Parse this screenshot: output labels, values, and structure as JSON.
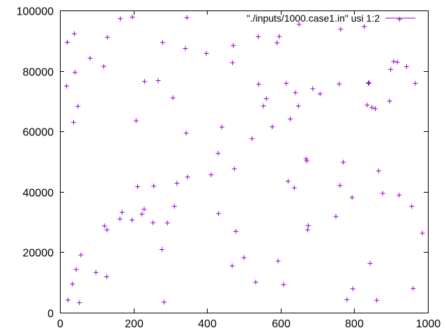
{
  "chart_data": {
    "type": "scatter",
    "title": "",
    "xlabel": "",
    "ylabel": "",
    "xlim": [
      0,
      1000
    ],
    "ylim": [
      0,
      100000
    ],
    "x_ticks": [
      0,
      200,
      400,
      600,
      800,
      1000
    ],
    "y_ticks": [
      0,
      20000,
      40000,
      60000,
      80000,
      100000
    ],
    "x_tick_labels": [
      "0",
      "200",
      "400",
      "600",
      "800",
      "1000"
    ],
    "y_tick_labels": [
      "0",
      "20000",
      "40000",
      "60000",
      "80000",
      "100000"
    ],
    "grid": false,
    "legend_position": "top-right",
    "series": [
      {
        "name": "\"./inputs/1000.case1.in\" usi 1:2",
        "color": "#9400d3",
        "marker": "plus",
        "points": [
          [
            18,
            75000
          ],
          [
            20,
            89500
          ],
          [
            22,
            4200
          ],
          [
            34,
            9500
          ],
          [
            37,
            63000
          ],
          [
            39,
            92300
          ],
          [
            41,
            79500
          ],
          [
            44,
            14300
          ],
          [
            49,
            68300
          ],
          [
            53,
            3300
          ],
          [
            57,
            19100
          ],
          [
            82,
            84200
          ],
          [
            98,
            13300
          ],
          [
            119,
            81500
          ],
          [
            121,
            28700
          ],
          [
            127,
            11900
          ],
          [
            128,
            27400
          ],
          [
            129,
            91100
          ],
          [
            163,
            31000
          ],
          [
            164,
            97300
          ],
          [
            169,
            33200
          ],
          [
            196,
            30700
          ],
          [
            197,
            97800
          ],
          [
            207,
            63500
          ],
          [
            211,
            41700
          ],
          [
            223,
            32600
          ],
          [
            229,
            34200
          ],
          [
            230,
            76500
          ],
          [
            253,
            29800
          ],
          [
            255,
            41900
          ],
          [
            267,
            76800
          ],
          [
            277,
            20900
          ],
          [
            279,
            89400
          ],
          [
            283,
            3500
          ],
          [
            292,
            29700
          ],
          [
            307,
            71100
          ],
          [
            311,
            35200
          ],
          [
            318,
            42800
          ],
          [
            341,
            87400
          ],
          [
            343,
            59400
          ],
          [
            345,
            97600
          ],
          [
            347,
            44900
          ],
          [
            398,
            85800
          ],
          [
            411,
            45600
          ],
          [
            430,
            52700
          ],
          [
            431,
            32800
          ],
          [
            440,
            61400
          ],
          [
            468,
            15500
          ],
          [
            469,
            82700
          ],
          [
            471,
            88400
          ],
          [
            474,
            47600
          ],
          [
            478,
            26900
          ],
          [
            500,
            18200
          ],
          [
            522,
            57600
          ],
          [
            532,
            10100
          ],
          [
            539,
            91300
          ],
          [
            540,
            75600
          ],
          [
            553,
            68400
          ],
          [
            561,
            70800
          ],
          [
            577,
            61500
          ],
          [
            590,
            89300
          ],
          [
            593,
            17100
          ],
          [
            596,
            91400
          ],
          [
            608,
            9300
          ],
          [
            615,
            75900
          ],
          [
            620,
            43500
          ],
          [
            626,
            64100
          ],
          [
            637,
            41300
          ],
          [
            640,
            72800
          ],
          [
            648,
            68400
          ],
          [
            650,
            95400
          ],
          [
            669,
            50900
          ],
          [
            671,
            50200
          ],
          [
            673,
            27400
          ],
          [
            675,
            28800
          ],
          [
            687,
            74100
          ],
          [
            707,
            72400
          ],
          [
            750,
            31800
          ],
          [
            759,
            75700
          ],
          [
            761,
            42100
          ],
          [
            763,
            93800
          ],
          [
            770,
            49800
          ],
          [
            780,
            4300
          ],
          [
            794,
            38100
          ],
          [
            796,
            7900
          ],
          [
            827,
            94700
          ],
          [
            835,
            68700
          ],
          [
            838,
            75900
          ],
          [
            840,
            76100
          ],
          [
            843,
            16300
          ],
          [
            848,
            67900
          ],
          [
            857,
            67500
          ],
          [
            861,
            4100
          ],
          [
            866,
            46900
          ],
          [
            877,
            39500
          ],
          [
            896,
            70000
          ],
          [
            899,
            80500
          ],
          [
            907,
            83100
          ],
          [
            917,
            82900
          ],
          [
            922,
            38900
          ],
          [
            923,
            97100
          ],
          [
            942,
            81400
          ],
          [
            956,
            35200
          ],
          [
            960,
            8000
          ],
          [
            966,
            75900
          ],
          [
            985,
            26300
          ]
        ]
      }
    ]
  }
}
